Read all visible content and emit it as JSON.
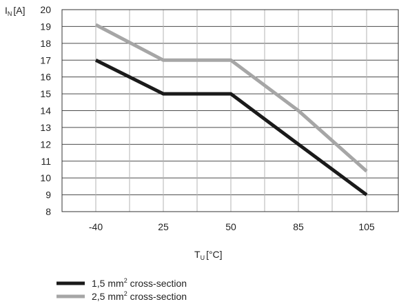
{
  "chart_data": {
    "type": "line",
    "title": "",
    "ylabel": {
      "main": "I",
      "sub": "N",
      "unit": "[A]"
    },
    "xlabel": {
      "main": "T",
      "sub": "U",
      "unit": "[°C]"
    },
    "categories": [
      "-40",
      "25",
      "50",
      "85",
      "105"
    ],
    "ylim": [
      8,
      20
    ],
    "yticks": [
      8,
      9,
      10,
      11,
      12,
      13,
      14,
      15,
      16,
      17,
      18,
      19,
      20
    ],
    "grid": true,
    "legend_position": "bottom-left",
    "series": [
      {
        "name": "1,5 mm² cross-section",
        "legend": {
          "pre": "1,5 mm",
          "sup": "2",
          "post": " cross-section"
        },
        "color": "#1a1a1a",
        "values": [
          17,
          15,
          15,
          12,
          9
        ]
      },
      {
        "name": "2,5 mm² cross-section",
        "legend": {
          "pre": "2,5 mm",
          "sup": "2",
          "post": " cross-section"
        },
        "color": "#a6a6a6",
        "values": [
          19.1,
          17,
          17,
          14,
          10.4
        ]
      }
    ]
  }
}
